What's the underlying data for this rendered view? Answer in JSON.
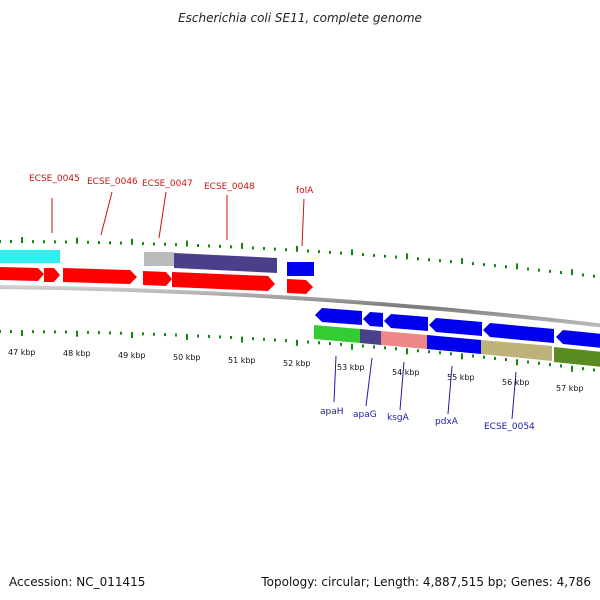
{
  "title": "Escherichia coli SE11, complete genome",
  "footer": {
    "accession": "Accession: NC_011415",
    "summary": "Topology: circular; Length: 4,887,515 bp; Genes: 4,786"
  },
  "scale": {
    "unit": "kbp",
    "labels": [
      "47 kbp",
      "48 kbp",
      "49 kbp",
      "50 kbp",
      "51 kbp",
      "52 kbp",
      "53 kbp",
      "54 kbp",
      "55 kbp",
      "56 kbp",
      "57 kbp"
    ]
  },
  "genes_top": [
    {
      "label": "ECSE_0045",
      "color": "#cc1111"
    },
    {
      "label": "ECSE_0046",
      "color": "#cc1111"
    },
    {
      "label": "ECSE_0047",
      "color": "#cc1111"
    },
    {
      "label": "ECSE_0048",
      "color": "#cc1111"
    },
    {
      "label": "folA",
      "color": "#cc1111"
    }
  ],
  "genes_bottom": [
    {
      "label": "apaH",
      "color": "#1a1aaa"
    },
    {
      "label": "apaG",
      "color": "#1a1aaa"
    },
    {
      "label": "ksgA",
      "color": "#1a1aaa"
    },
    {
      "label": "pdxA",
      "color": "#1a1aaa"
    },
    {
      "label": "ECSE_0054",
      "color": "#1a1aaa"
    }
  ],
  "colors": {
    "cds_forward": "#ff0000",
    "cds_reverse": "#0000ee",
    "backbone": "#888888",
    "tick": "#118811",
    "cog_cyan": "#33eeee",
    "cog_gray": "#bbbbbb",
    "cog_slate": "#4a3f8a",
    "cog_green": "#33cc33",
    "cog_pink": "#ee8888",
    "cog_tan": "#bdb27a",
    "cog_olive": "#5a8a22"
  }
}
